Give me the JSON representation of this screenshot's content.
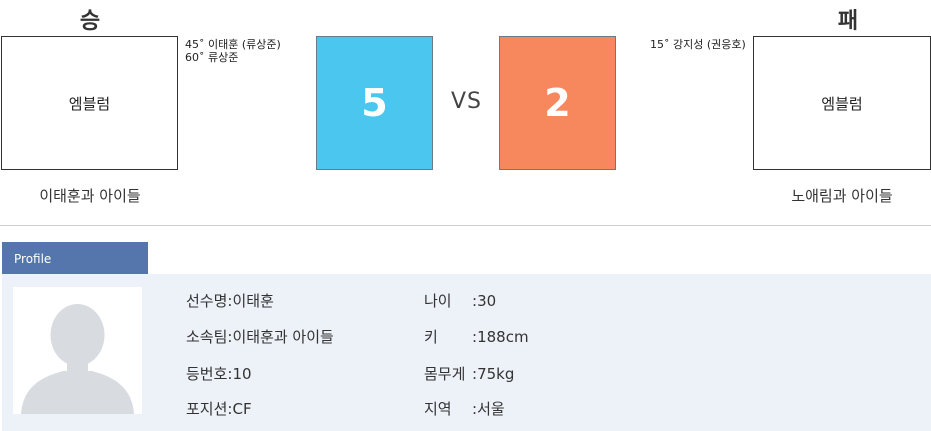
{
  "match": {
    "winner_label": "승",
    "loser_label": "패",
    "vs_label": "VS",
    "home": {
      "emblem_text": "엠블럼",
      "team_name": "이태훈과 아이들",
      "score": "5",
      "score_color": "#4ac6ef",
      "scorers": [
        "45˚ 이태훈 (류상준)",
        "60˚ 류상준"
      ]
    },
    "away": {
      "emblem_text": "엠블럼",
      "team_name": "노애림과 아이들",
      "score": "2",
      "score_color": "#f7875c",
      "scorers": [
        "15˚ 강지성 (권응호)"
      ]
    }
  },
  "profile": {
    "tab_label": "Profile",
    "avatar_icon": "user-silhouette-icon",
    "left_fields": [
      {
        "key": "선수명",
        "value": "이태훈"
      },
      {
        "key": "소속팀",
        "value": "이태훈과 아이들"
      },
      {
        "key": "등번호",
        "value": "10"
      },
      {
        "key": "포지션",
        "value": "CF"
      }
    ],
    "right_fields": [
      {
        "key": "나이",
        "value": "30"
      },
      {
        "key": "키",
        "value": "188cm"
      },
      {
        "key": "몸무게",
        "value": "75kg"
      },
      {
        "key": "지역",
        "value": "서울"
      }
    ],
    "colors": {
      "tab": "#5476ad",
      "panel": "#edf1f8"
    }
  }
}
